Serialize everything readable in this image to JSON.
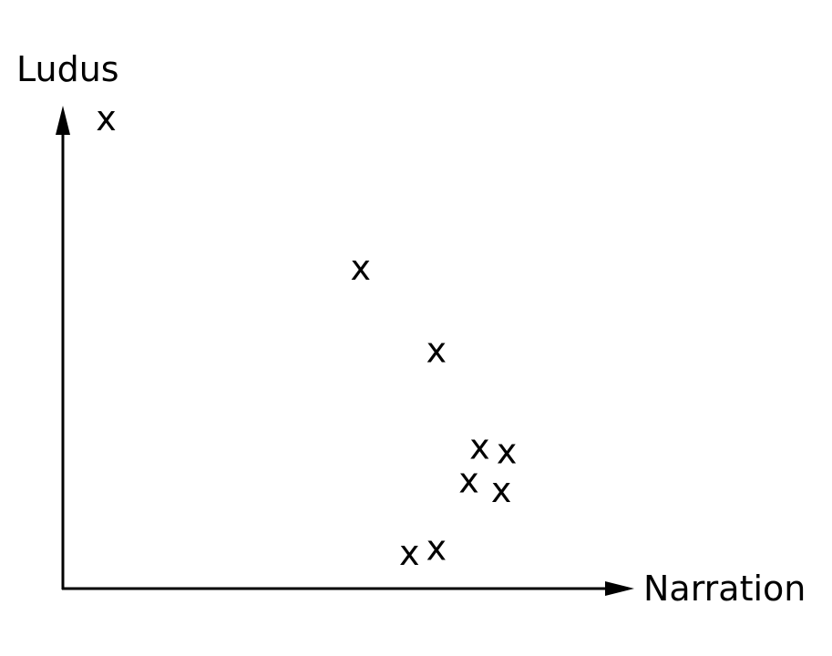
{
  "chart_data": {
    "type": "scatter",
    "title": "",
    "xlabel": "Narration",
    "ylabel": "Ludus",
    "marker": "x",
    "xlim": [
      0,
      100
    ],
    "ylim": [
      0,
      100
    ],
    "grid": false,
    "series": [
      {
        "points": [
          {
            "x": 8,
            "y": 97
          },
          {
            "x": 55,
            "y": 66
          },
          {
            "x": 69,
            "y": 49
          },
          {
            "x": 77,
            "y": 29
          },
          {
            "x": 82,
            "y": 28
          },
          {
            "x": 75,
            "y": 22
          },
          {
            "x": 81,
            "y": 20
          },
          {
            "x": 64,
            "y": 7
          },
          {
            "x": 69,
            "y": 8
          }
        ]
      }
    ]
  }
}
